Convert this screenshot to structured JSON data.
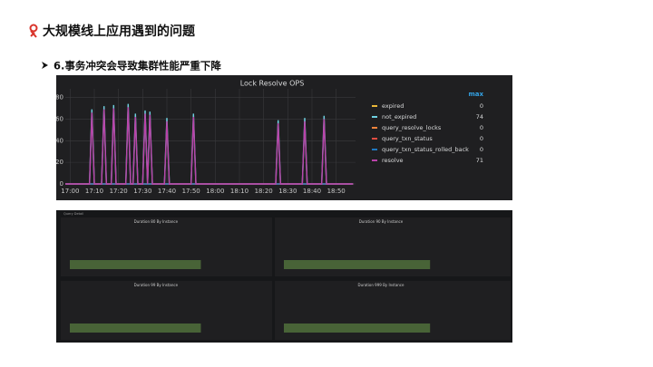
{
  "header": {
    "title": "大规模线上应用遇到的问题",
    "subtitle": "6.事务冲突会导致集群性能严重下降"
  },
  "chart_data": {
    "type": "line",
    "title": "Lock Resolve OPS",
    "x": [
      "16:58",
      "17:08",
      "17:09",
      "17:10",
      "17:13",
      "17:14",
      "17:15",
      "17:17",
      "17:18",
      "17:19",
      "17:23",
      "17:24",
      "17:25",
      "17:26",
      "17:27",
      "17:28",
      "17:30",
      "17:31",
      "17:32",
      "17:33",
      "17:34",
      "17:39",
      "17:40",
      "17:41",
      "17:50",
      "17:51",
      "17:52",
      "18:25",
      "18:26",
      "18:27",
      "18:36",
      "18:37",
      "18:38",
      "18:44",
      "18:45",
      "18:46",
      "18:57"
    ],
    "xlim": [
      "16:58",
      "18:58"
    ],
    "xticks": [
      "17:00",
      "17:10",
      "17:20",
      "17:30",
      "17:40",
      "17:50",
      "18:00",
      "18:10",
      "18:20",
      "18:30",
      "18:40",
      "18:50"
    ],
    "ylim": [
      0,
      88
    ],
    "yticks": [
      0,
      20,
      40,
      60,
      80
    ],
    "grid": true,
    "legend_header": "max",
    "series": [
      {
        "name": "expired",
        "color": "#eab839",
        "max": 0,
        "values": [
          0,
          0,
          0,
          0,
          0,
          0,
          0,
          0,
          0,
          0,
          0,
          0,
          0,
          0,
          0,
          0,
          0,
          0,
          0,
          0,
          0,
          0,
          0,
          0,
          0,
          0,
          0,
          0,
          0,
          0,
          0,
          0,
          0,
          0,
          0,
          0,
          0
        ]
      },
      {
        "name": "not_expired",
        "color": "#6ed0e0",
        "max": 74,
        "values": [
          0,
          0,
          69,
          0,
          0,
          72,
          0,
          0,
          73,
          0,
          0,
          74,
          0,
          0,
          65,
          0,
          0,
          68,
          0,
          67,
          0,
          0,
          61,
          0,
          0,
          65,
          0,
          0,
          59,
          0,
          0,
          61,
          0,
          0,
          63,
          0,
          0
        ]
      },
      {
        "name": "query_resolve_locks",
        "color": "#ef843c",
        "max": 0,
        "values": [
          0,
          0,
          0,
          0,
          0,
          0,
          0,
          0,
          0,
          0,
          0,
          0,
          0,
          0,
          0,
          0,
          0,
          0,
          0,
          0,
          0,
          0,
          0,
          0,
          0,
          0,
          0,
          0,
          0,
          0,
          0,
          0,
          0,
          0,
          0,
          0,
          0
        ]
      },
      {
        "name": "query_txn_status",
        "color": "#e24d42",
        "max": 0,
        "values": [
          0,
          0,
          0,
          0,
          0,
          0,
          0,
          0,
          0,
          0,
          0,
          0,
          0,
          0,
          0,
          0,
          0,
          0,
          0,
          0,
          0,
          0,
          0,
          0,
          0,
          0,
          0,
          0,
          0,
          0,
          0,
          0,
          0,
          0,
          0,
          0,
          0
        ]
      },
      {
        "name": "query_txn_status_rolled_back",
        "color": "#1f78c1",
        "max": 0,
        "values": [
          0,
          0,
          0,
          0,
          0,
          0,
          0,
          0,
          0,
          0,
          0,
          0,
          0,
          0,
          0,
          0,
          0,
          0,
          0,
          0,
          0,
          0,
          0,
          0,
          0,
          0,
          0,
          0,
          0,
          0,
          0,
          0,
          0,
          0,
          0,
          0,
          0
        ]
      },
      {
        "name": "resolve",
        "color": "#ba43a9",
        "max": 71,
        "values": [
          0,
          0,
          66,
          0,
          0,
          69,
          0,
          0,
          70,
          0,
          0,
          71,
          0,
          0,
          62,
          0,
          0,
          65,
          0,
          64,
          0,
          0,
          58,
          0,
          0,
          62,
          0,
          0,
          56,
          0,
          0,
          58,
          0,
          0,
          60,
          0,
          0
        ]
      }
    ]
  },
  "detail_panels": {
    "header": "Query Detail",
    "titles": [
      "Duration 80 By Instance",
      "Duration 90 By Instance",
      "Duration 99 By Instance",
      "Duration 999 By Instance"
    ]
  }
}
